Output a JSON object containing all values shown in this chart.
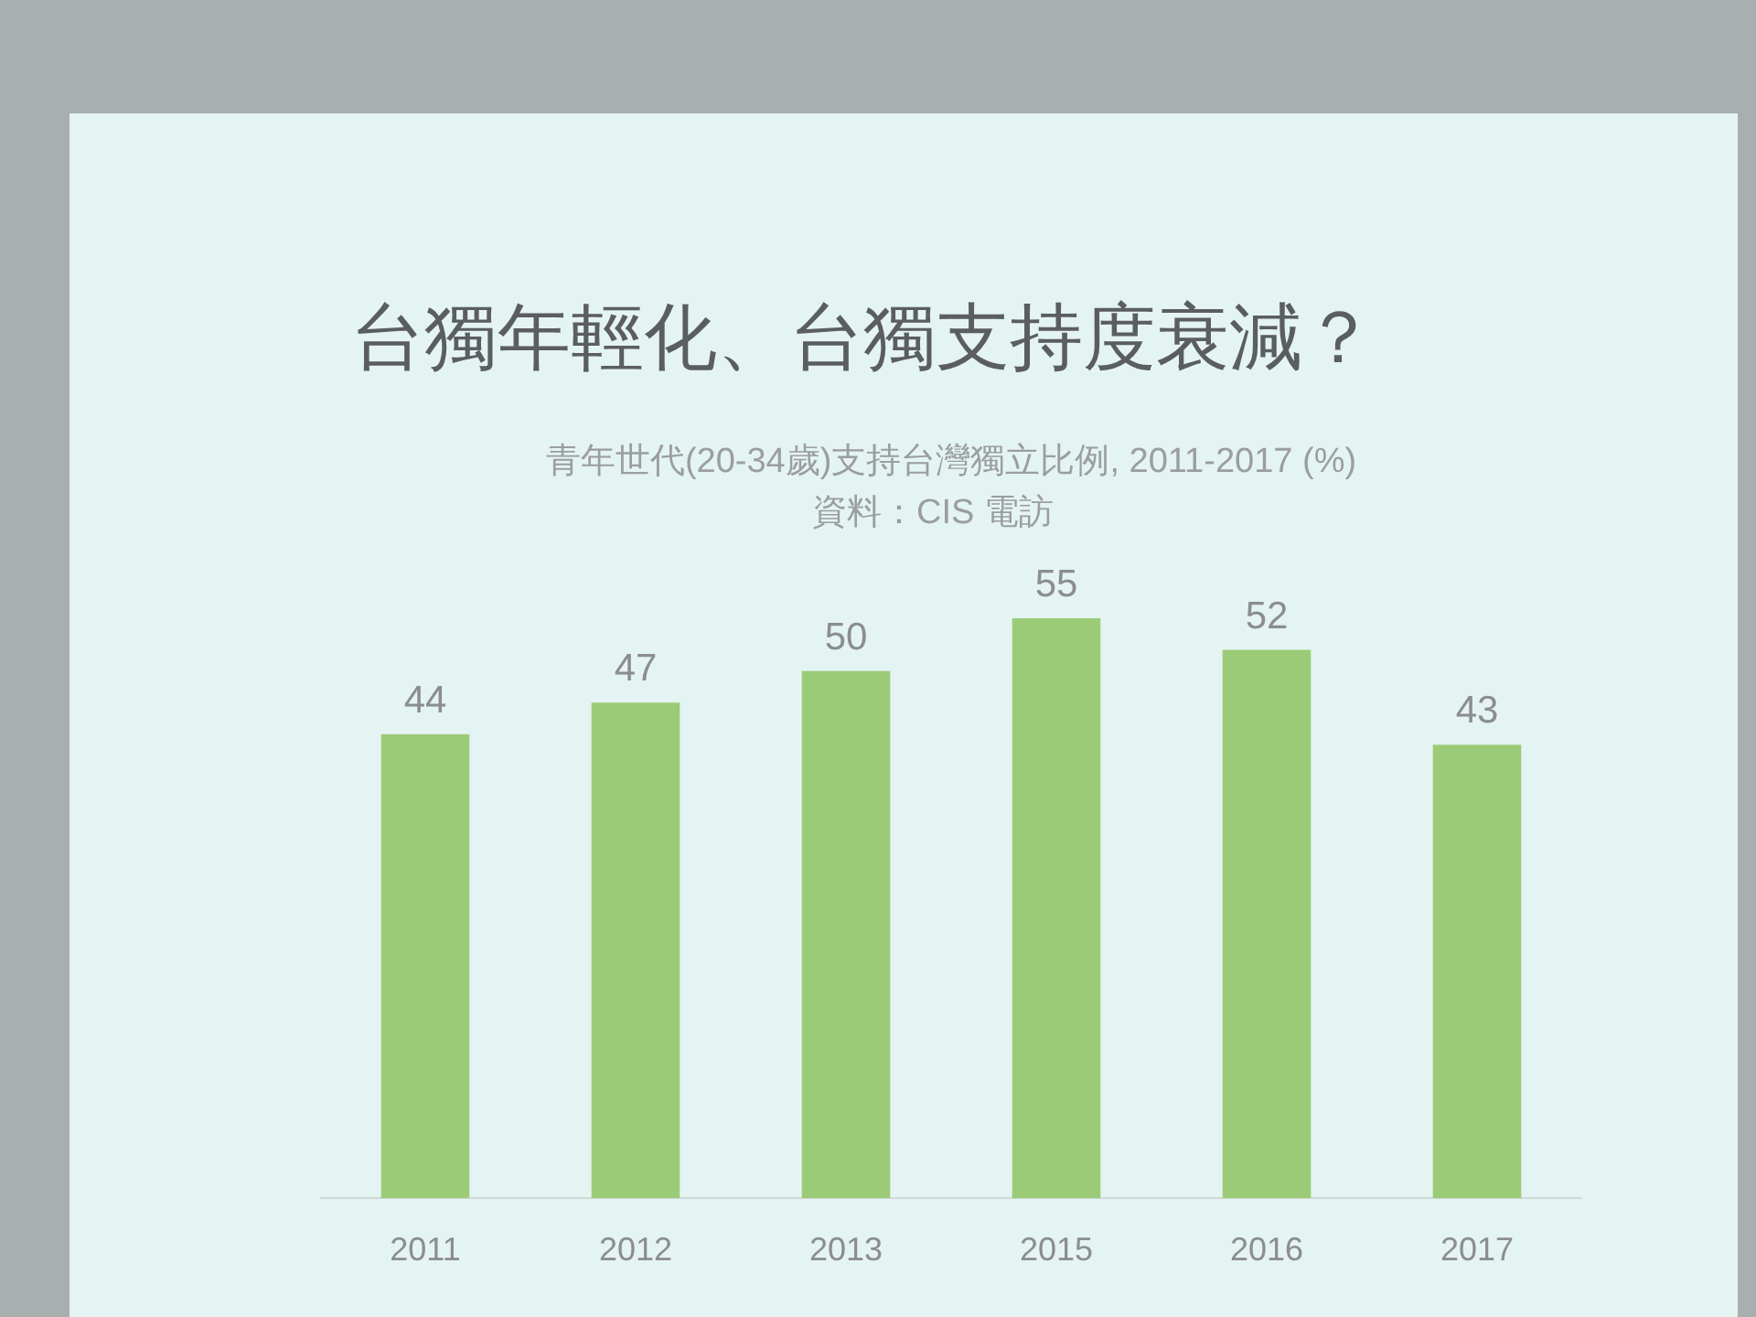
{
  "chart_data": {
    "type": "bar",
    "title": "台獨年輕化、台獨支持度衰減？",
    "subtitle": "青年世代(20-34歲)支持台灣獨立比例, 2011-2017 (%)",
    "annotations": [
      "資料：CIS 電訪"
    ],
    "categories": [
      "2011",
      "2012",
      "2013",
      "2015",
      "2016",
      "2017"
    ],
    "values": [
      44,
      47,
      50,
      55,
      52,
      43
    ],
    "color": "#9ccb78",
    "data_labels": true
  }
}
